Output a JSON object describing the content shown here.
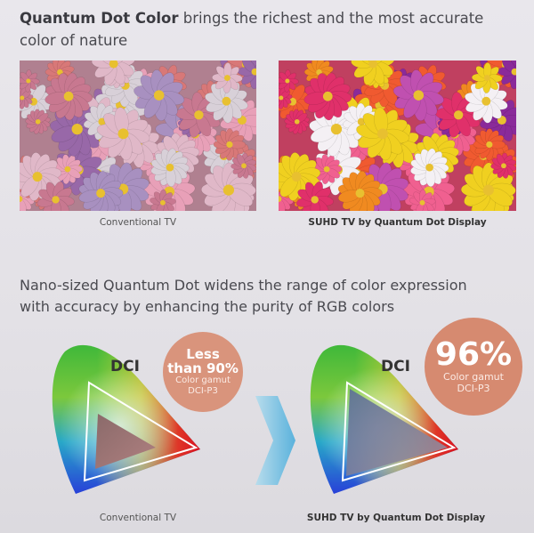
{
  "header": {
    "title_bold": "Quantum Dot Color",
    "title_rest": "brings the richest and the most accurate color of nature"
  },
  "photos": [
    {
      "caption": "Conventional TV"
    },
    {
      "caption": "SUHD TV by Quantum Dot Display"
    }
  ],
  "subtitle": "Nano-sized Quantum Dot widens the range of color expression with accuracy by enhancing the purity of RGB colors",
  "gamuts": [
    {
      "label": "DCI",
      "badge_main": "Less than 90%",
      "badge_sub": "Color gamut DCI-P3",
      "caption": "Conventional TV"
    },
    {
      "label": "DCI",
      "badge_main": "96%",
      "badge_sub": "Color gamut DCI-P3",
      "caption": "SUHD TV by Quantum Dot Display"
    }
  ]
}
